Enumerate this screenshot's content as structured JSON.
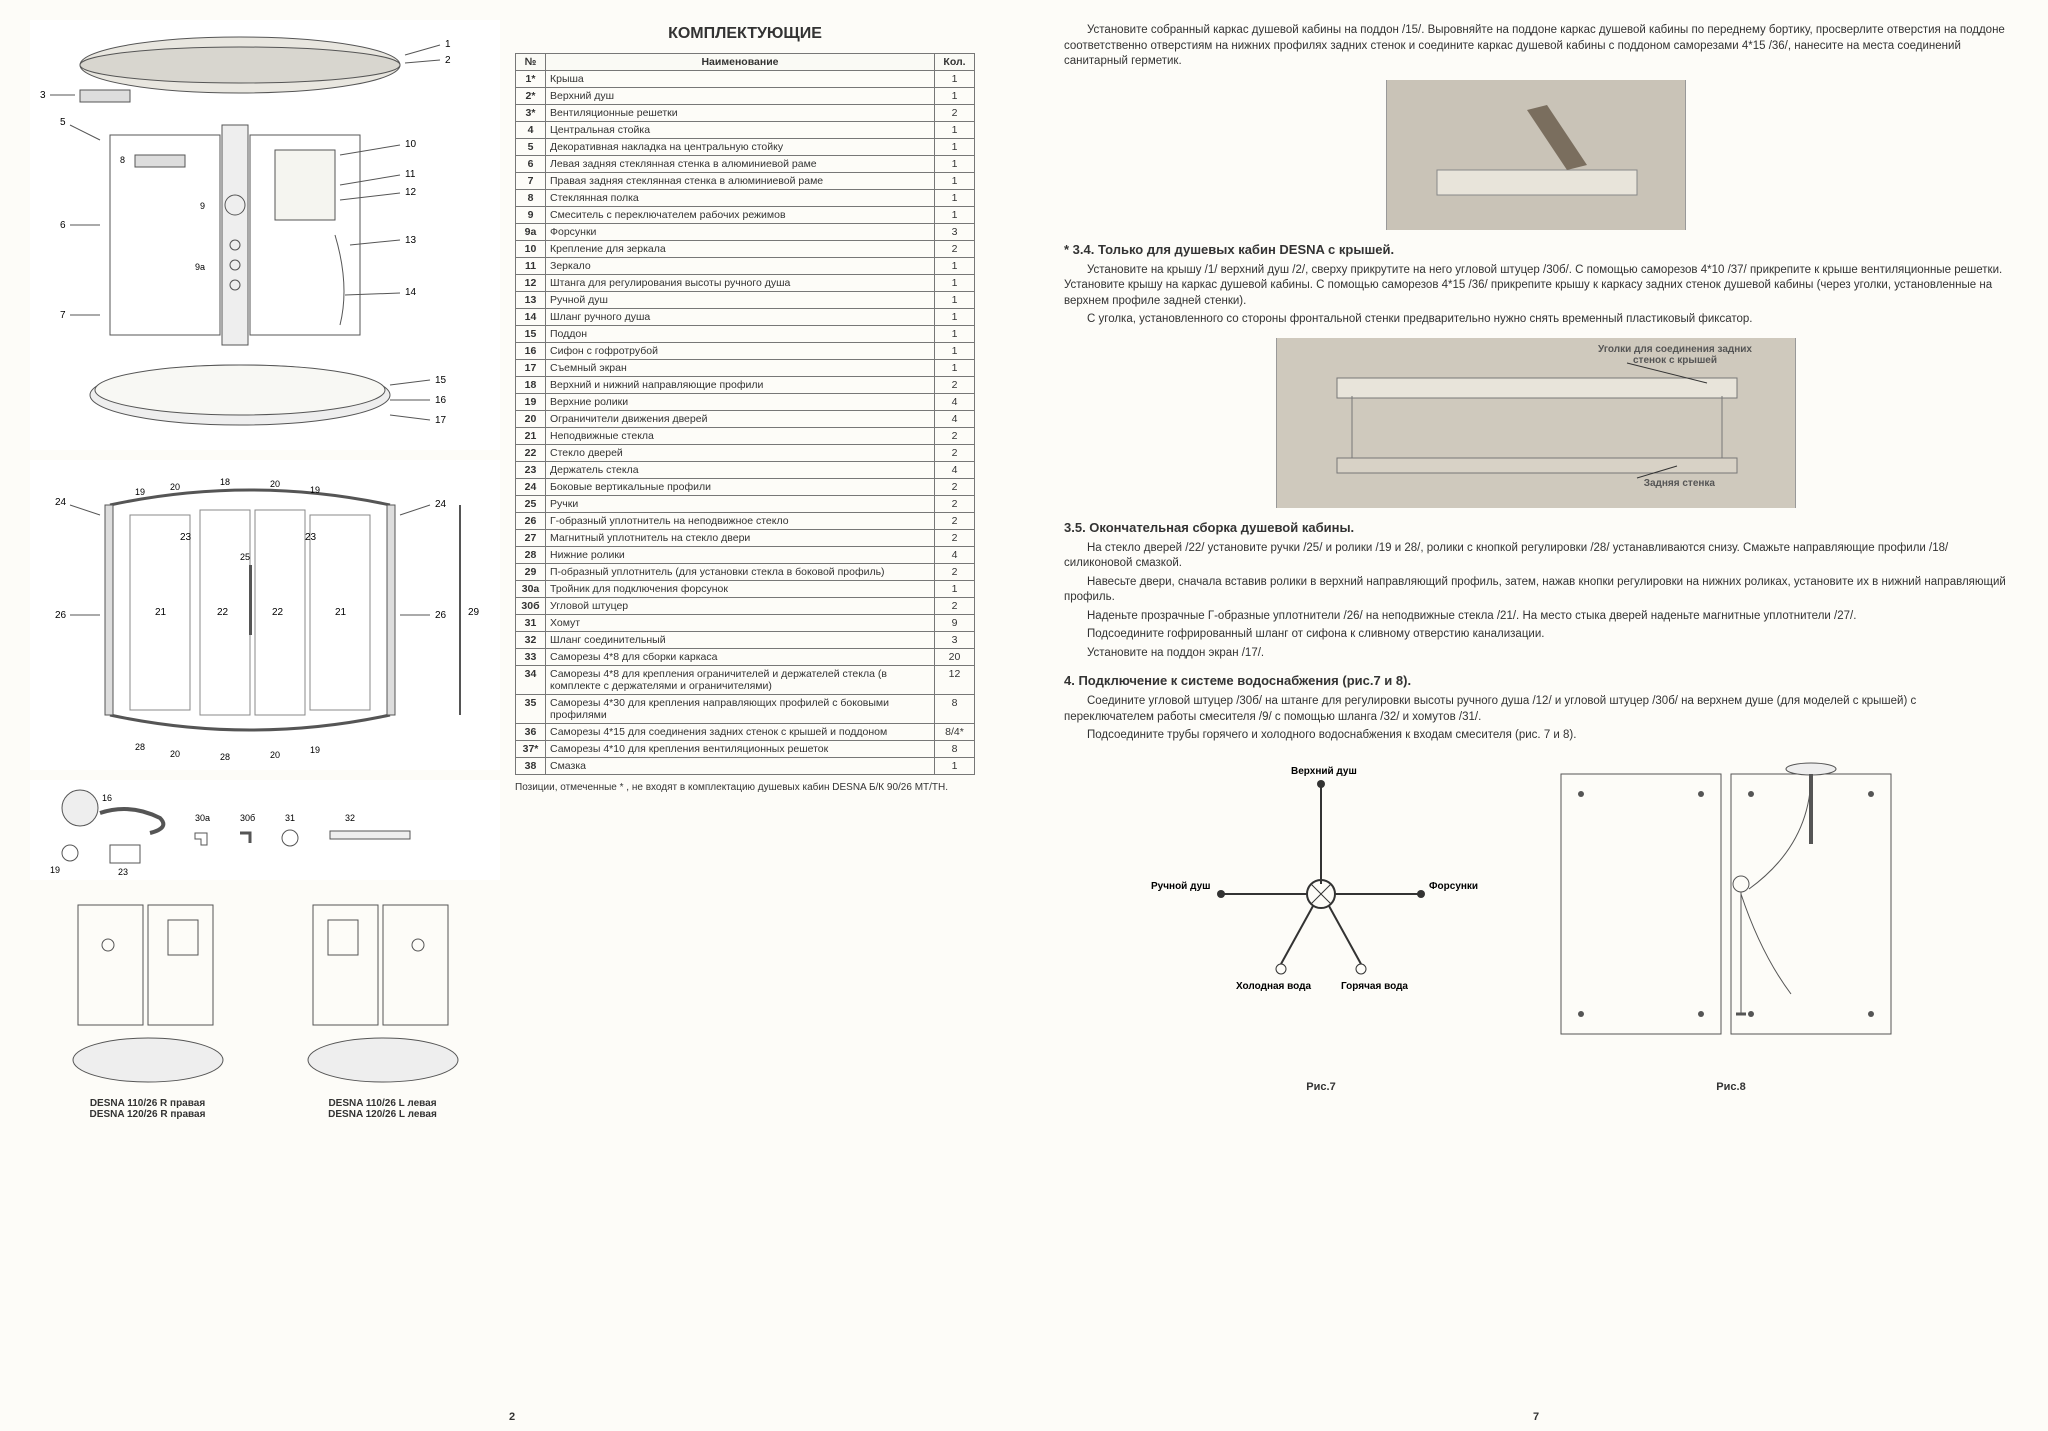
{
  "page_left": {
    "title": "КОМПЛЕКТУЮЩИЕ",
    "table_headers": {
      "num": "№",
      "name": "Наименование",
      "qty": "Кол."
    },
    "parts": [
      {
        "n": "1*",
        "name": "Крыша",
        "q": "1"
      },
      {
        "n": "2*",
        "name": "Верхний душ",
        "q": "1"
      },
      {
        "n": "3*",
        "name": "Вентиляционные решетки",
        "q": "2"
      },
      {
        "n": "4",
        "name": "Центральная стойка",
        "q": "1"
      },
      {
        "n": "5",
        "name": "Декоративная накладка на центральную стойку",
        "q": "1"
      },
      {
        "n": "6",
        "name": "Левая задняя стеклянная стенка в алюминиевой раме",
        "q": "1"
      },
      {
        "n": "7",
        "name": "Правая задняя стеклянная стенка в алюминиевой раме",
        "q": "1"
      },
      {
        "n": "8",
        "name": "Стеклянная полка",
        "q": "1"
      },
      {
        "n": "9",
        "name": "Смеситель с переключателем рабочих режимов",
        "q": "1"
      },
      {
        "n": "9а",
        "name": "Форсунки",
        "q": "3"
      },
      {
        "n": "10",
        "name": "Крепление для зеркала",
        "q": "2"
      },
      {
        "n": "11",
        "name": "Зеркало",
        "q": "1"
      },
      {
        "n": "12",
        "name": "Штанга для регулирования высоты ручного душа",
        "q": "1"
      },
      {
        "n": "13",
        "name": "Ручной душ",
        "q": "1"
      },
      {
        "n": "14",
        "name": "Шланг ручного душа",
        "q": "1"
      },
      {
        "n": "15",
        "name": "Поддон",
        "q": "1"
      },
      {
        "n": "16",
        "name": "Сифон с гофротрубой",
        "q": "1"
      },
      {
        "n": "17",
        "name": "Съемный экран",
        "q": "1"
      },
      {
        "n": "18",
        "name": "Верхний и нижний направляющие профили",
        "q": "2"
      },
      {
        "n": "19",
        "name": "Верхние ролики",
        "q": "4"
      },
      {
        "n": "20",
        "name": "Ограничители движения дверей",
        "q": "4"
      },
      {
        "n": "21",
        "name": "Неподвижные стекла",
        "q": "2"
      },
      {
        "n": "22",
        "name": "Стекло дверей",
        "q": "2"
      },
      {
        "n": "23",
        "name": "Держатель стекла",
        "q": "4"
      },
      {
        "n": "24",
        "name": "Боковые вертикальные профили",
        "q": "2"
      },
      {
        "n": "25",
        "name": "Ручки",
        "q": "2"
      },
      {
        "n": "26",
        "name": "Г-образный уплотнитель на неподвижное стекло",
        "q": "2"
      },
      {
        "n": "27",
        "name": "Магнитный уплотнитель на стекло двери",
        "q": "2"
      },
      {
        "n": "28",
        "name": "Нижние ролики",
        "q": "4"
      },
      {
        "n": "29",
        "name": "П-образный уплотнитель (для установки стекла в боковой профиль)",
        "q": "2"
      },
      {
        "n": "30а",
        "name": "Тройник для подключения форсунок",
        "q": "1"
      },
      {
        "n": "30б",
        "name": "Угловой штуцер",
        "q": "2"
      },
      {
        "n": "31",
        "name": "Хомут",
        "q": "9"
      },
      {
        "n": "32",
        "name": "Шланг соединительный",
        "q": "3"
      },
      {
        "n": "33",
        "name": "Саморезы  4*8  для сборки каркаса",
        "q": "20"
      },
      {
        "n": "34",
        "name": "Саморезы  4*8  для крепления ограничителей и держателей стекла (в комплекте с держателями и ограничителями)",
        "q": "12"
      },
      {
        "n": "35",
        "name": "Саморезы  4*30  для крепления направляющих профилей с боковыми профилями",
        "q": "8"
      },
      {
        "n": "36",
        "name": "Саморезы  4*15  для соединения задних стенок с крышей и поддоном",
        "q": "8/4*"
      },
      {
        "n": "37*",
        "name": "Саморезы  4*10  для крепления вентиляционных решеток",
        "q": "8"
      },
      {
        "n": "38",
        "name": "Смазка",
        "q": "1"
      }
    ],
    "footnote": "Позиции, отмеченные * , не входят в комплектацию душевых кабин DESNA Б/К 90/26 МТ/ТН.",
    "models": {
      "right": {
        "line1": "DESNA 110/26 R правая",
        "line2": "DESNA 120/26 R правая"
      },
      "left": {
        "line1": "DESNA 110/26 L левая",
        "line2": "DESNA 120/26 L левая"
      }
    },
    "pagenum": "2"
  },
  "page_right": {
    "p1": "Установите собранный каркас душевой кабины на поддон /15/. Выровняйте на поддоне каркас душевой кабины  по переднему бортику, просверлите отверстия на поддоне соответственно отверстиям на нижних профилях задних стенок и соедините каркас душевой кабины с поддоном саморезами 4*15 /36/,  нанесите на места соединений   санитарный герметик.",
    "h34": "* 3.4. Только для душевых кабин DESNA с крышей.",
    "p34a": "Установите на крышу /1/ верхний душ /2/, сверху  прикрутите на него угловой штуцер /30б/. С помощью саморезов 4*10 /37/ прикрепите к крыше вентиляционные решетки. Установите крышу на каркас душевой кабины. С помощью саморезов 4*15 /36/ прикрепите крышу к каркасу задних стенок душевой кабины (через уголки, установленные на верхнем профиле задней стенки).",
    "p34b": "С уголка, установленного со стороны фронтальной стенки предварительно нужно снять временный пластиковый фиксатор.",
    "photo_label1": "Уголки для соединения задних стенок с крышей",
    "photo_label2": "Задняя стенка",
    "h35": "3.5. Окончательная сборка душевой кабины.",
    "p35a": "На стекло дверей /22/ установите ручки /25/ и ролики /19 и 28/, ролики с кнопкой регулировки /28/ устанавливаются снизу. Смажьте направляющие профили /18/ силиконовой смазкой.",
    "p35b": "Навесьте двери, сначала вставив ролики в верхний направляющий профиль, затем, нажав кнопки регулировки на нижних роликах, установите их в нижний направляющий профиль.",
    "p35c": "Наденьте прозрачные Г-образные уплотнители /26/ на неподвижные стекла /21/. На место стыка дверей наденьте магнитные уплотнители /27/.",
    "p35d": "Подсоедините гофрированный шланг от сифона к сливному отверстию канализации.",
    "p35e": "Установите на поддон экран /17/.",
    "h4": "4. Подключение к системе водоснабжения (рис.7 и 8).",
    "p4a": "Соедините угловой штуцер /30б/ на штанге для регулировки высоты  ручного душа /12/ и угловой штуцер /30б/ на верхнем душе (для моделей с крышей) с переключателем работы смесителя /9/ с помощью шланга /32/ и хомутов /31/.",
    "p4b": "Подсоедините трубы горячего и холодного водоснабжения  к  входам смесителя (рис. 7 и 8).",
    "fig7_labels": {
      "top": "Верхний душ",
      "left": "Ручной душ",
      "right": "Форсунки",
      "cold": "Холодная вода",
      "hot": "Горячая вода"
    },
    "fig7_cap": "Рис.7",
    "fig8_cap": "Рис.8",
    "pagenum": "7"
  },
  "colors": {
    "bg": "#fdfcf8",
    "text": "#333333",
    "border": "#777777"
  }
}
